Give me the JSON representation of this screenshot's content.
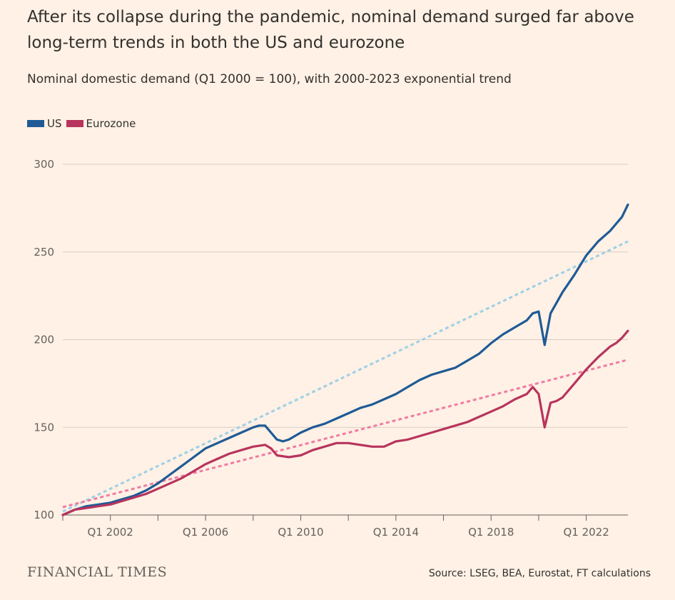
{
  "chart_data": {
    "type": "line",
    "title": "After its collapse during the pandemic, nominal demand surged far above long-term trends in both the US and eurozone",
    "subtitle": "Nominal domestic demand (Q1 2000 = 100), with 2000-2023 exponential trend",
    "xlabel": "",
    "ylabel": "",
    "ylim": [
      100,
      300
    ],
    "yticks": [
      "100",
      "150",
      "200",
      "250",
      "300"
    ],
    "xlim": [
      2000.0,
      2023.75
    ],
    "xticks": [
      {
        "label": "Q1 2002",
        "value": 2002
      },
      {
        "label": "Q1 2006",
        "value": 2006
      },
      {
        "label": "Q1 2010",
        "value": 2010
      },
      {
        "label": "Q1 2014",
        "value": 2014
      },
      {
        "label": "Q1 2018",
        "value": 2018
      },
      {
        "label": "Q1 2022",
        "value": 2022
      }
    ],
    "grid": true,
    "legend_placement": "top-left",
    "series": [
      {
        "name": "US",
        "color": "#1f5a96",
        "style": "solid",
        "x": [
          2000.0,
          2000.5,
          2001.0,
          2001.5,
          2002.0,
          2002.5,
          2003.0,
          2003.5,
          2004.0,
          2004.5,
          2005.0,
          2005.5,
          2006.0,
          2006.5,
          2007.0,
          2007.5,
          2008.0,
          2008.25,
          2008.5,
          2008.75,
          2009.0,
          2009.25,
          2009.5,
          2010.0,
          2010.5,
          2011.0,
          2011.5,
          2012.0,
          2012.5,
          2013.0,
          2013.5,
          2014.0,
          2014.5,
          2015.0,
          2015.5,
          2016.0,
          2016.5,
          2017.0,
          2017.5,
          2018.0,
          2018.5,
          2019.0,
          2019.5,
          2019.75,
          2020.0,
          2020.25,
          2020.5,
          2020.75,
          2021.0,
          2021.5,
          2022.0,
          2022.5,
          2023.0,
          2023.25,
          2023.5,
          2023.75
        ],
        "y": [
          100,
          103,
          105,
          106,
          107,
          109,
          111,
          114,
          118,
          123,
          128,
          133,
          138,
          141,
          144,
          147,
          150,
          151,
          151,
          147,
          143,
          142,
          143,
          147,
          150,
          152,
          155,
          158,
          161,
          163,
          166,
          169,
          173,
          177,
          180,
          182,
          184,
          188,
          192,
          198,
          203,
          207,
          211,
          215,
          216,
          197,
          215,
          221,
          227,
          237,
          248,
          256,
          262,
          266,
          270,
          277
        ]
      },
      {
        "name": "Eurozone",
        "color": "#b7345d",
        "style": "solid",
        "x": [
          2000.0,
          2000.5,
          2001.0,
          2001.5,
          2002.0,
          2002.5,
          2003.0,
          2003.5,
          2004.0,
          2004.5,
          2005.0,
          2005.5,
          2006.0,
          2006.5,
          2007.0,
          2007.5,
          2008.0,
          2008.5,
          2008.75,
          2009.0,
          2009.5,
          2010.0,
          2010.5,
          2011.0,
          2011.5,
          2012.0,
          2012.5,
          2013.0,
          2013.5,
          2014.0,
          2014.5,
          2015.0,
          2015.5,
          2016.0,
          2016.5,
          2017.0,
          2017.5,
          2018.0,
          2018.5,
          2019.0,
          2019.5,
          2019.75,
          2020.0,
          2020.25,
          2020.5,
          2020.75,
          2021.0,
          2021.5,
          2022.0,
          2022.5,
          2023.0,
          2023.25,
          2023.5,
          2023.75
        ],
        "y": [
          100,
          103,
          104,
          105,
          106,
          108,
          110,
          112,
          115,
          118,
          121,
          125,
          129,
          132,
          135,
          137,
          139,
          140,
          138,
          134,
          133,
          134,
          137,
          139,
          141,
          141,
          140,
          139,
          139,
          142,
          143,
          145,
          147,
          149,
          151,
          153,
          156,
          159,
          162,
          166,
          169,
          173,
          169,
          150,
          164,
          165,
          167,
          175,
          183,
          190,
          196,
          198,
          201,
          205
        ]
      },
      {
        "name": "US trend",
        "color": "#9ed0e6",
        "style": "dashed",
        "x": [
          2000.0,
          2023.75
        ],
        "y": [
          102,
          256
        ]
      },
      {
        "name": "Eurozone trend",
        "color": "#f07ca3",
        "style": "dashed",
        "x": [
          2000.0,
          2023.75
        ],
        "y": [
          104.5,
          188.5
        ]
      }
    ]
  },
  "legend": {
    "items": [
      {
        "label": "US",
        "color": "#1f5a96"
      },
      {
        "label": "Eurozone",
        "color": "#b7345d"
      }
    ]
  },
  "footer": {
    "brand": "FINANCIAL TIMES",
    "source": "Source: LSEG, BEA, Eurostat, FT calculations"
  }
}
